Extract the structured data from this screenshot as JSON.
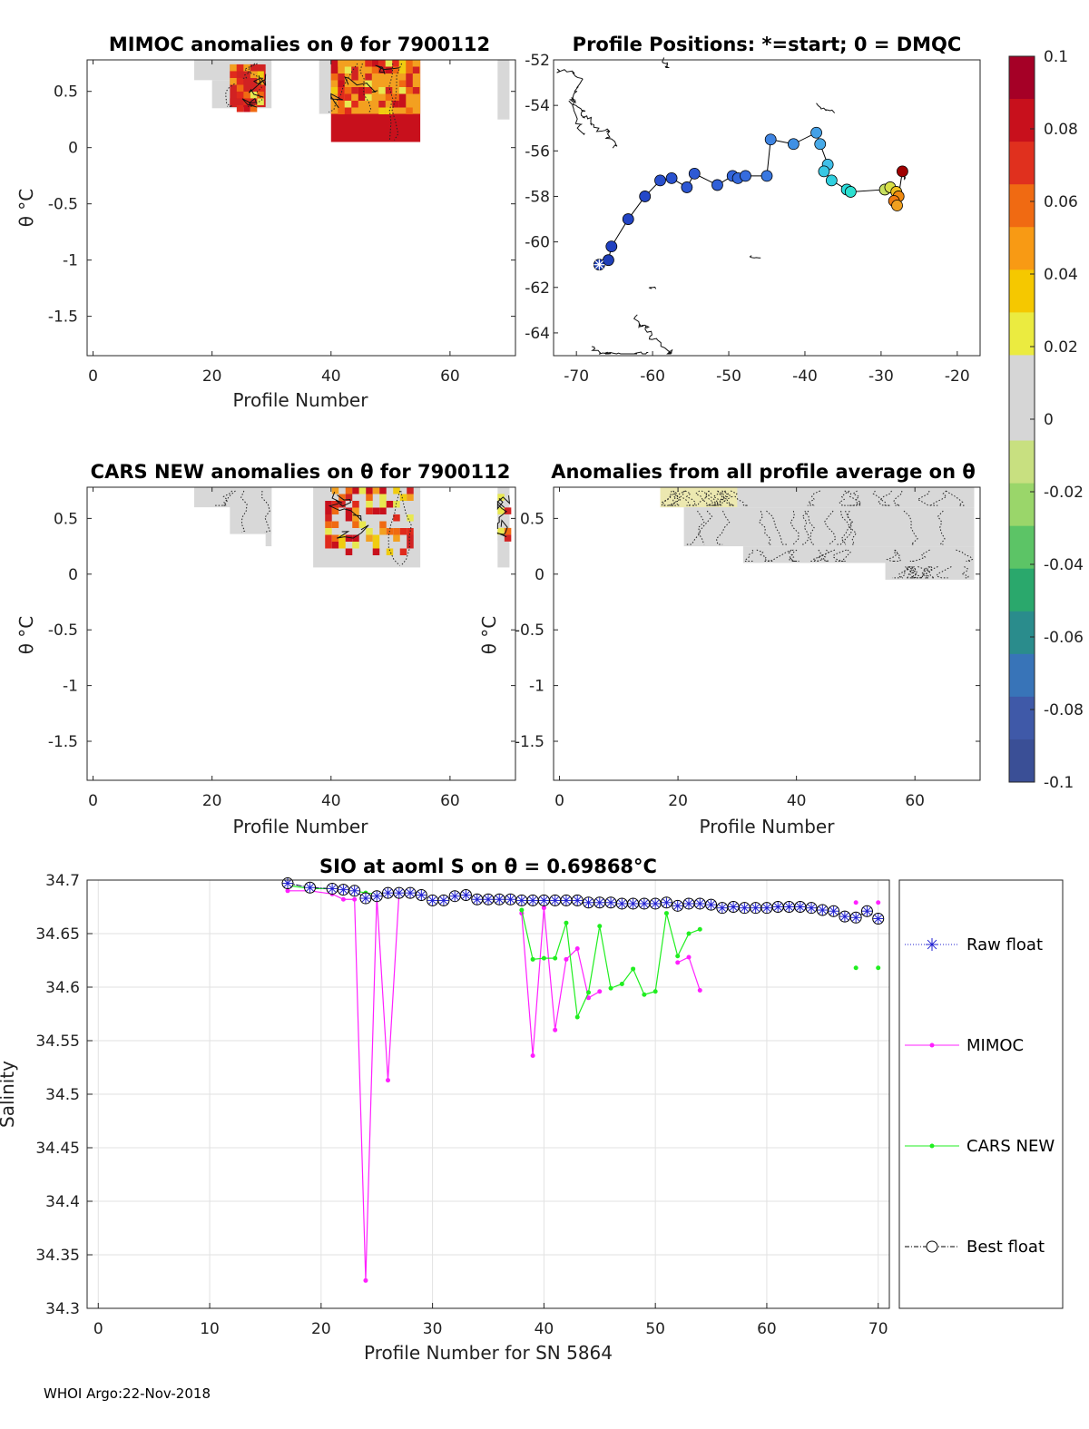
{
  "chart_data": [
    {
      "type": "heatmap",
      "id": "mimoc",
      "title": "MIMOC anomalies on θ  for 7900112",
      "xlabel": "Profile Number",
      "ylabel": "θ °C",
      "xlim": [
        -1,
        71
      ],
      "ylim": [
        -1.85,
        0.78
      ],
      "xticks": [
        "0",
        "20",
        "40",
        "60"
      ],
      "yticks": [
        "0.5",
        "0",
        "-0.5",
        "-1",
        "-1.5"
      ],
      "blocks": [
        {
          "x0": 17,
          "x1": 30,
          "ytop": 0.78,
          "ybot": 0.6,
          "fill": "#d8d8d8"
        },
        {
          "x0": 20,
          "x1": 30,
          "ytop": 0.6,
          "ybot": 0.35,
          "fill": "#d8d8d8"
        },
        {
          "x0": 23,
          "x1": 29,
          "ytop": 0.74,
          "ybot": 0.36,
          "fill": "#d12222",
          "speckle": true
        },
        {
          "x0": 38,
          "x1": 55,
          "ytop": 0.78,
          "ybot": 0.3,
          "fill": "#d8d8d8"
        },
        {
          "x0": 40,
          "x1": 55,
          "ytop": 0.78,
          "ybot": 0.05,
          "fill": "#c8101c"
        },
        {
          "x0": 40,
          "x1": 55,
          "ytop": 0.78,
          "ybot": 0.3,
          "fill": "#f3a020",
          "speckle": true
        },
        {
          "x0": 68,
          "x1": 70,
          "ytop": 0.78,
          "ybot": 0.25,
          "fill": "#d8d8d8"
        }
      ]
    },
    {
      "type": "scatter",
      "id": "positions",
      "title": "Profile Positions: *=start; 0 = DMQC",
      "xlim": [
        -73,
        -17
      ],
      "ylim": [
        -65,
        -52
      ],
      "xticks": [
        "-70",
        "-60",
        "-50",
        "-40",
        "-30",
        "-20"
      ],
      "yticks": [
        "-52",
        "-54",
        "-56",
        "-58",
        "-60",
        "-62",
        "-64"
      ],
      "track": [
        {
          "lon": -67,
          "lat": -61.0,
          "c": "#1f3fb8"
        },
        {
          "lon": -65.8,
          "lat": -60.8,
          "c": "#1f3fb8"
        },
        {
          "lon": -65.4,
          "lat": -60.2,
          "c": "#2040c0"
        },
        {
          "lon": -63.2,
          "lat": -59.0,
          "c": "#2244c4"
        },
        {
          "lon": -61.0,
          "lat": -58.0,
          "c": "#2448c8"
        },
        {
          "lon": -59.0,
          "lat": -57.3,
          "c": "#2a50cc"
        },
        {
          "lon": -57.5,
          "lat": -57.2,
          "c": "#2a52cf"
        },
        {
          "lon": -55.5,
          "lat": -57.6,
          "c": "#2c56d2"
        },
        {
          "lon": -54.5,
          "lat": -57.0,
          "c": "#2e5ad4"
        },
        {
          "lon": -51.5,
          "lat": -57.5,
          "c": "#3060d8"
        },
        {
          "lon": -49.5,
          "lat": -57.1,
          "c": "#3264da"
        },
        {
          "lon": -48.8,
          "lat": -57.2,
          "c": "#3468dc"
        },
        {
          "lon": -47.8,
          "lat": -57.1,
          "c": "#366cde"
        },
        {
          "lon": -45.0,
          "lat": -57.1,
          "c": "#3a78e0"
        },
        {
          "lon": -44.5,
          "lat": -55.5,
          "c": "#3e84e2"
        },
        {
          "lon": -41.5,
          "lat": -55.7,
          "c": "#4090e4"
        },
        {
          "lon": -38.5,
          "lat": -55.2,
          "c": "#44a0e6"
        },
        {
          "lon": -38.0,
          "lat": -55.7,
          "c": "#48aae8"
        },
        {
          "lon": -37.0,
          "lat": -56.6,
          "c": "#40bfe8"
        },
        {
          "lon": -37.5,
          "lat": -56.9,
          "c": "#38c8e4"
        },
        {
          "lon": -36.5,
          "lat": -57.3,
          "c": "#30d0e0"
        },
        {
          "lon": -34.5,
          "lat": -57.7,
          "c": "#28dcdc"
        },
        {
          "lon": -34.0,
          "lat": -57.8,
          "c": "#2ce0d0"
        },
        {
          "lon": -29.5,
          "lat": -57.7,
          "c": "#c8e060"
        },
        {
          "lon": -28.8,
          "lat": -57.6,
          "c": "#d8e048"
        },
        {
          "lon": -28.0,
          "lat": -57.8,
          "c": "#f0c020"
        },
        {
          "lon": -27.7,
          "lat": -58.0,
          "c": "#f08a10"
        },
        {
          "lon": -28.3,
          "lat": -58.2,
          "c": "#f07a10"
        },
        {
          "lon": -27.9,
          "lat": -58.4,
          "c": "#f0a020"
        },
        {
          "lon": -27.2,
          "lat": -56.9,
          "c": "#a00000"
        }
      ]
    },
    {
      "type": "heatmap",
      "id": "cars",
      "title": "CARS NEW anomalies on θ for 7900112",
      "xlabel": "Profile Number",
      "ylabel": "θ °C",
      "xlim": [
        -1,
        71
      ],
      "ylim": [
        -1.85,
        0.78
      ],
      "xticks": [
        "0",
        "20",
        "40",
        "60"
      ],
      "yticks": [
        "0.5",
        "0",
        "-0.5",
        "-1",
        "-1.5"
      ],
      "blocks": [
        {
          "x0": 17,
          "x1": 30,
          "ytop": 0.78,
          "ybot": 0.6,
          "fill": "#d8d8d8"
        },
        {
          "x0": 23,
          "x1": 30,
          "ytop": 0.78,
          "ybot": 0.36,
          "fill": "#d8d8d8"
        },
        {
          "x0": 29,
          "x1": 30,
          "ytop": 0.78,
          "ybot": 0.25,
          "fill": "#d8d8d8"
        },
        {
          "x0": 37,
          "x1": 55,
          "ytop": 0.78,
          "ybot": 0.06,
          "fill": "#d8d8d8"
        },
        {
          "x0": 39,
          "x1": 54,
          "ytop": 0.78,
          "ybot": 0.2,
          "fill": "#d8d8d8",
          "speckle": true
        },
        {
          "x0": 68,
          "x1": 70,
          "ytop": 0.78,
          "ybot": 0.06,
          "fill": "#d8d8d8"
        },
        {
          "x0": 68,
          "x1": 70,
          "ytop": 0.72,
          "ybot": 0.3,
          "fill": "#d8d8d8",
          "speckle": true
        }
      ]
    },
    {
      "type": "heatmap",
      "id": "allavg",
      "title": "Anomalies from all profile average on θ",
      "xlabel": "Profile Number",
      "ylabel": "θ °C",
      "xlim": [
        -1,
        71
      ],
      "ylim": [
        -1.85,
        0.78
      ],
      "xticks": [
        "0",
        "20",
        "40",
        "60"
      ],
      "yticks": [
        "0.5",
        "0",
        "-0.5",
        "-1",
        "-1.5"
      ],
      "blocks": [
        {
          "x0": 17,
          "x1": 70,
          "ytop": 0.78,
          "ybot": 0.6,
          "fill": "#d8d8d8"
        },
        {
          "x0": 17,
          "x1": 30,
          "ytop": 0.78,
          "ybot": 0.6,
          "fill": "#ece8b0"
        },
        {
          "x0": 21,
          "x1": 70,
          "ytop": 0.6,
          "ybot": 0.25,
          "fill": "#d8d8d8"
        },
        {
          "x0": 31,
          "x1": 70,
          "ytop": 0.25,
          "ybot": 0.1,
          "fill": "#d8d8d8"
        },
        {
          "x0": 55,
          "x1": 70,
          "ytop": 0.1,
          "ybot": -0.05,
          "fill": "#d8d8d8"
        }
      ]
    },
    {
      "type": "line",
      "id": "salinity",
      "title": "SIO at aoml S on θ = 0.69868°C",
      "xlabel": "Profile Number for SN 5864",
      "ylabel": "Salinity",
      "xlim": [
        -1,
        71
      ],
      "ylim": [
        34.3,
        34.7
      ],
      "xticks": [
        "0",
        "10",
        "20",
        "30",
        "40",
        "50",
        "60",
        "70"
      ],
      "yticks": [
        "34.7",
        "34.65",
        "34.6",
        "34.55",
        "34.5",
        "34.45",
        "34.4",
        "34.35",
        "34.3"
      ],
      "series": [
        {
          "name": "Raw float",
          "color": "#2020d0",
          "x": [
            17,
            19,
            21,
            22,
            23,
            24,
            25,
            26,
            27,
            28,
            29,
            30,
            31,
            32,
            33,
            34,
            35,
            36,
            37,
            38,
            39,
            40,
            41,
            42,
            43,
            44,
            45,
            46,
            47,
            48,
            49,
            50,
            51,
            52,
            53,
            54,
            55,
            56,
            57,
            58,
            59,
            60,
            61,
            62,
            63,
            64,
            65,
            66,
            67,
            68,
            69,
            70
          ],
          "y": [
            34.697,
            34.693,
            34.692,
            34.691,
            34.69,
            34.683,
            34.685,
            34.688,
            34.688,
            34.688,
            34.686,
            34.681,
            34.681,
            34.685,
            34.686,
            34.682,
            34.682,
            34.682,
            34.682,
            34.681,
            34.681,
            34.681,
            34.681,
            34.681,
            34.681,
            34.679,
            34.679,
            34.679,
            34.678,
            34.678,
            34.678,
            34.678,
            34.679,
            34.676,
            34.678,
            34.678,
            34.677,
            34.674,
            34.675,
            34.674,
            34.674,
            34.674,
            34.675,
            34.675,
            34.675,
            34.674,
            34.672,
            34.671,
            34.666,
            34.665,
            34.671,
            34.664
          ]
        },
        {
          "name": "MIMOC",
          "color": "#ff20ff",
          "segments": [
            {
              "x": [
                17,
                19,
                21,
                22,
                23,
                24,
                25,
                26,
                27,
                28
              ],
              "y": [
                34.69,
                34.69,
                34.687,
                34.682,
                34.682,
                34.326,
                34.685,
                34.513,
                34.688,
                34.688
              ]
            },
            {
              "x": [
                38,
                39,
                40,
                41,
                42,
                43,
                44,
                45
              ],
              "y": [
                34.669,
                34.536,
                34.674,
                34.56,
                34.626,
                34.636,
                34.59,
                34.596
              ]
            },
            {
              "x": [
                52,
                53,
                54
              ],
              "y": [
                34.623,
                34.628,
                34.597
              ]
            },
            {
              "x": [
                68
              ],
              "y": [
                34.679
              ]
            },
            {
              "x": [
                70
              ],
              "y": [
                34.679
              ]
            }
          ]
        },
        {
          "name": "CARS NEW",
          "color": "#20ee20",
          "segments": [
            {
              "x": [
                17,
                19,
                21,
                22,
                23,
                24,
                25,
                26,
                27,
                28
              ],
              "y": [
                34.695,
                34.692,
                34.692,
                34.691,
                34.69,
                34.688,
                34.687,
                34.688,
                34.688,
                34.688
              ]
            },
            {
              "x": [
                38,
                39,
                40,
                41,
                42,
                43,
                44,
                45,
                46,
                47,
                48,
                49,
                50,
                51,
                52,
                53,
                54
              ],
              "y": [
                34.672,
                34.626,
                34.627,
                34.627,
                34.66,
                34.572,
                34.595,
                34.657,
                34.599,
                34.603,
                34.617,
                34.593,
                34.596,
                34.669,
                34.629,
                34.65,
                34.654
              ]
            },
            {
              "x": [
                68
              ],
              "y": [
                34.618
              ]
            },
            {
              "x": [
                70
              ],
              "y": [
                34.618
              ]
            }
          ]
        },
        {
          "name": "Best float",
          "color": "#000000"
        }
      ],
      "legend": [
        "Raw float",
        "MIMOC",
        "CARS NEW",
        "Best float"
      ]
    }
  ],
  "colorbar": {
    "ticks": [
      "0.1",
      "0.08",
      "0.06",
      "0.04",
      "0.02",
      "0",
      "-0.02",
      "-0.04",
      "-0.06",
      "-0.08",
      "-0.1"
    ],
    "colors": [
      "#a50026",
      "#c8101c",
      "#e0301e",
      "#f06a12",
      "#f89a14",
      "#f5c800",
      "#ebeb40",
      "#d6d6d6",
      "#d6d6d6",
      "#c8e080",
      "#9ad66a",
      "#5cc466",
      "#2aa86c",
      "#2a8c8c",
      "#3874b8",
      "#3f59a8",
      "#3a4f96"
    ]
  },
  "footer": "WHOI Argo:22-Nov-2018"
}
